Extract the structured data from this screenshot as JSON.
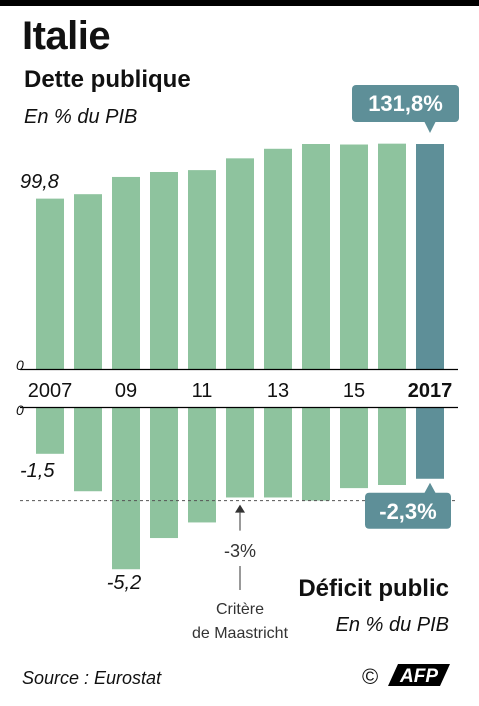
{
  "header": {
    "title": "Italie",
    "subtitle_debt": "Dette publique",
    "unit_debt": "En % du PIB",
    "subtitle_deficit": "Déficit public",
    "unit_deficit": "En % du PIB"
  },
  "footer": {
    "source": "Source : Eurostat",
    "copyright": "©",
    "logo": "AFP"
  },
  "colors": {
    "bar": "#8ec39e",
    "highlight": "#5e8f98",
    "callout": "#5e8f98"
  },
  "chart_data": [
    {
      "type": "bar",
      "title": "Dette publique",
      "ylabel": "En % du PIB",
      "categories": [
        "2007",
        "2008",
        "2009",
        "2010",
        "2011",
        "2012",
        "2013",
        "2014",
        "2015",
        "2016",
        "2017"
      ],
      "tick_labels": [
        "2007",
        "",
        "09",
        "",
        "11",
        "",
        "13",
        "",
        "15",
        "",
        "2017"
      ],
      "values": [
        99.8,
        102.4,
        112.5,
        115.4,
        116.5,
        123.4,
        129.0,
        131.8,
        131.5,
        132.0,
        131.8
      ],
      "data_labels": {
        "first": "99,8",
        "last": "131,8%"
      },
      "zero_label": "0",
      "ylim": [
        0,
        140
      ]
    },
    {
      "type": "bar",
      "title": "Déficit public",
      "ylabel": "En % du PIB",
      "categories": [
        "2007",
        "2008",
        "2009",
        "2010",
        "2011",
        "2012",
        "2013",
        "2014",
        "2015",
        "2016",
        "2017"
      ],
      "values": [
        -1.5,
        -2.7,
        -5.2,
        -4.2,
        -3.7,
        -2.9,
        -2.9,
        -3.0,
        -2.6,
        -2.5,
        -2.3
      ],
      "data_labels": {
        "first": "-1,5",
        "min": "-5,2",
        "last": "-2,3%"
      },
      "zero_label": "0",
      "reference_line": {
        "value": -3,
        "label": "-3%",
        "caption_line1": "Critère",
        "caption_line2": "de Maastricht"
      }
    }
  ]
}
